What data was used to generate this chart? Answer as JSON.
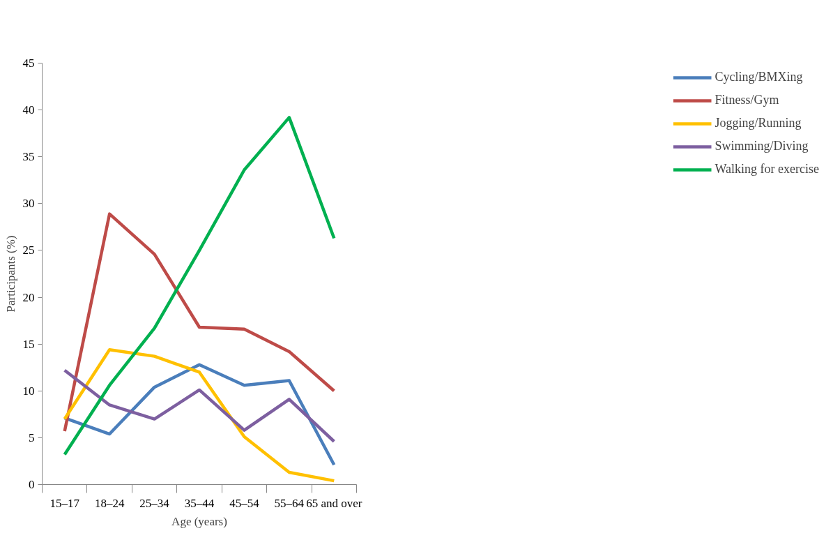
{
  "chart_data": {
    "type": "line",
    "categories": [
      "15–17",
      "18–24",
      "25–34",
      "35–44",
      "45–54",
      "55–64",
      "65 and over"
    ],
    "xlabel": "Age (years)",
    "ylabel": "Participants (%)",
    "ylim": [
      0,
      45
    ],
    "yticks": [
      0,
      5,
      10,
      15,
      20,
      25,
      30,
      35,
      40,
      45
    ],
    "grid": false,
    "legend": "right",
    "marker": "none",
    "line_style": "solid",
    "series": [
      {
        "name": "Cycling/BMXing",
        "color": "#4a7ebb",
        "values": [
          7.1,
          5.4,
          10.4,
          12.8,
          10.6,
          11.1,
          2.1
        ]
      },
      {
        "name": "Fitness/Gym",
        "color": "#be4b48",
        "values": [
          5.7,
          28.9,
          24.6,
          16.8,
          16.6,
          14.2,
          10.0
        ]
      },
      {
        "name": "Jogging/Running",
        "color": "#ffc000",
        "values": [
          7.0,
          14.4,
          13.7,
          12.0,
          5.1,
          1.3,
          0.4
        ]
      },
      {
        "name": "Swimming/Diving",
        "color": "#7d5fa0",
        "values": [
          12.2,
          8.5,
          7.0,
          10.1,
          5.8,
          9.1,
          4.6
        ]
      },
      {
        "name": "Walking for exercise",
        "color": "#00b050",
        "values": [
          3.2,
          10.6,
          16.7,
          25.0,
          33.6,
          39.2,
          26.3
        ]
      }
    ]
  }
}
